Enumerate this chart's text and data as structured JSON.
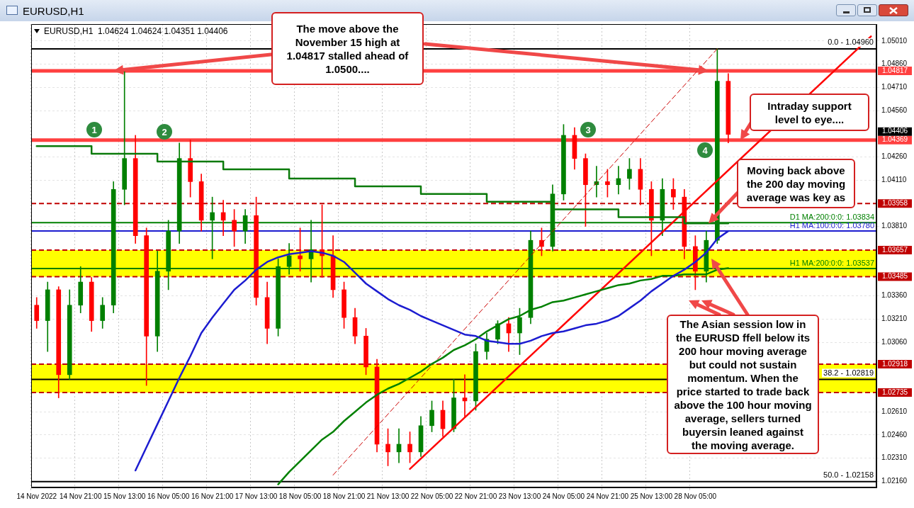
{
  "chart_data": {
    "type": "candlestick",
    "title": "EURUSD,H1",
    "subtitle": "EURUSD,H1  1.04624 1.04624 1.04351 1.04406",
    "categories": [
      "14 Nov 2022",
      null,
      null,
      null,
      "14 Nov 21:00",
      null,
      null,
      null,
      "15 Nov 13:00",
      null,
      null,
      null,
      "16 Nov 05:00",
      null,
      null,
      null,
      "16 Nov 21:00",
      null,
      null,
      null,
      "17 Nov 13:00",
      null,
      null,
      null,
      "18 Nov 05:00",
      null,
      null,
      null,
      "18 Nov 21:00",
      null,
      null,
      null,
      "21 Nov 13:00",
      null,
      null,
      null,
      "22 Nov 05:00",
      null,
      null,
      null,
      "22 Nov 21:00",
      null,
      null,
      null,
      "23 Nov 13:00",
      null,
      null,
      null,
      "24 Nov 05:00",
      null,
      null,
      null,
      "24 Nov 21:00",
      null,
      null,
      null,
      "25 Nov 13:00",
      null,
      null,
      null,
      "28 Nov 05:00",
      null,
      null,
      null,
      null,
      null,
      null,
      null,
      null,
      null,
      null,
      null,
      null,
      null,
      null,
      null,
      null
    ],
    "ohlc": [
      [
        1.033,
        1.0335,
        1.0315,
        1.032
      ],
      [
        1.032,
        1.0345,
        1.03,
        1.034
      ],
      [
        1.034,
        1.0342,
        1.027,
        1.0285
      ],
      [
        1.0285,
        1.034,
        1.0282,
        1.033
      ],
      [
        1.033,
        1.0355,
        1.0325,
        1.0345
      ],
      [
        1.0345,
        1.0348,
        1.0313,
        1.032
      ],
      [
        1.032,
        1.0335,
        1.0315,
        1.033
      ],
      [
        1.033,
        1.041,
        1.0325,
        1.0405
      ],
      [
        1.0405,
        1.04817,
        1.0395,
        1.0425
      ],
      [
        1.0425,
        1.044,
        1.037,
        1.0375
      ],
      [
        1.0375,
        1.038,
        1.0278,
        1.031
      ],
      [
        1.031,
        1.0365,
        1.03,
        1.0352
      ],
      [
        1.0352,
        1.0385,
        1.034,
        1.0378
      ],
      [
        1.0378,
        1.0435,
        1.037,
        1.0425
      ],
      [
        1.0425,
        1.0437,
        1.04,
        1.041
      ],
      [
        1.041,
        1.0415,
        1.0378,
        1.0385
      ],
      [
        1.0385,
        1.04,
        1.036,
        1.039
      ],
      [
        1.039,
        1.0398,
        1.0375,
        1.0385
      ],
      [
        1.0385,
        1.0392,
        1.0368,
        1.0378
      ],
      [
        1.0378,
        1.0392,
        1.037,
        1.0388
      ],
      [
        1.0388,
        1.04,
        1.033,
        1.0335
      ],
      [
        1.0335,
        1.0345,
        1.0305,
        1.0315
      ],
      [
        1.0315,
        1.036,
        1.031,
        1.0355
      ],
      [
        1.0355,
        1.037,
        1.035,
        1.0362
      ],
      [
        1.0362,
        1.038,
        1.0352,
        1.036
      ],
      [
        1.036,
        1.0385,
        1.0345,
        1.0366
      ],
      [
        1.0366,
        1.0395,
        1.0348,
        1.0362
      ],
      [
        1.0362,
        1.0375,
        1.0335,
        1.034
      ],
      [
        1.034,
        1.0345,
        1.0315,
        1.0322
      ],
      [
        1.0322,
        1.0328,
        1.0305,
        1.031
      ],
      [
        1.031,
        1.0315,
        1.0285,
        1.029
      ],
      [
        1.029,
        1.0295,
        1.0235,
        1.024
      ],
      [
        1.024,
        1.025,
        1.0226,
        1.0235
      ],
      [
        1.0235,
        1.025,
        1.0228,
        1.024
      ],
      [
        1.024,
        1.0248,
        1.0228,
        1.0235
      ],
      [
        1.0235,
        1.0258,
        1.0232,
        1.0252
      ],
      [
        1.0252,
        1.0268,
        1.0248,
        1.0262
      ],
      [
        1.0262,
        1.0268,
        1.0245,
        1.025
      ],
      [
        1.025,
        1.0282,
        1.0248,
        1.027
      ],
      [
        1.027,
        1.0285,
        1.0258,
        1.0268
      ],
      [
        1.0268,
        1.0305,
        1.0262,
        1.03
      ],
      [
        1.03,
        1.0312,
        1.0295,
        1.0308
      ],
      [
        1.0308,
        1.032,
        1.0305,
        1.0318
      ],
      [
        1.0318,
        1.0322,
        1.03,
        1.0312
      ],
      [
        1.0312,
        1.0328,
        1.0298,
        1.0322
      ],
      [
        1.0322,
        1.0378,
        1.0318,
        1.0372
      ],
      [
        1.0372,
        1.038,
        1.0362,
        1.0368
      ],
      [
        1.0368,
        1.0408,
        1.0365,
        1.0402
      ],
      [
        1.0402,
        1.0447,
        1.0398,
        1.044
      ],
      [
        1.044,
        1.0445,
        1.0418,
        1.0425
      ],
      [
        1.0425,
        1.0428,
        1.0381,
        1.0408
      ],
      [
        1.0408,
        1.042,
        1.04,
        1.041
      ],
      [
        1.041,
        1.0418,
        1.04,
        1.0408
      ],
      [
        1.0408,
        1.042,
        1.0402,
        1.0412
      ],
      [
        1.0412,
        1.0425,
        1.0405,
        1.0418
      ],
      [
        1.0418,
        1.0425,
        1.0395,
        1.0405
      ],
      [
        1.0405,
        1.041,
        1.0362,
        1.0385
      ],
      [
        1.0385,
        1.0412,
        1.0375,
        1.0405
      ],
      [
        1.0405,
        1.0412,
        1.0392,
        1.04
      ],
      [
        1.04,
        1.0405,
        1.036,
        1.0368
      ],
      [
        1.0368,
        1.0375,
        1.034,
        1.0352
      ],
      [
        1.0352,
        1.0378,
        1.0345,
        1.0372
      ],
      [
        1.0372,
        1.0496,
        1.037,
        1.0475
      ],
      [
        1.0475,
        1.048,
        1.04351,
        1.04406
      ],
      null,
      null,
      null,
      null,
      null,
      null,
      null,
      null,
      null,
      null,
      null,
      null,
      null
    ],
    "colors": [
      "#ff0000",
      "#008000",
      "#ff0000",
      "#008000",
      "#008000",
      "#ff0000",
      "#008000",
      "#008000",
      "#008000",
      "#ff0000",
      "#ff0000",
      "#008000",
      "#008000",
      "#008000",
      "#ff0000",
      "#ff0000",
      "#008000",
      "#ff0000",
      "#ff0000",
      "#008000",
      "#ff0000",
      "#ff0000",
      "#008000",
      "#008000",
      "#ff0000",
      "#008000",
      "#ff0000",
      "#ff0000",
      "#ff0000",
      "#ff0000",
      "#ff0000",
      "#ff0000",
      "#ff0000",
      "#008000",
      "#ff0000",
      "#008000",
      "#008000",
      "#ff0000",
      "#008000",
      "#ff0000",
      "#008000",
      "#008000",
      "#008000",
      "#ff0000",
      "#008000",
      "#008000",
      "#ff0000",
      "#008000",
      "#008000",
      "#ff0000",
      "#ff0000",
      "#008000",
      "#ff0000",
      "#008000",
      "#008000",
      "#ff0000",
      "#ff0000",
      "#008000",
      "#ff0000",
      "#ff0000",
      "#ff0000",
      "#008000",
      "#008000",
      "#ff0000",
      null,
      null,
      null,
      null,
      null,
      null,
      null,
      null,
      null,
      null,
      null,
      null,
      null
    ],
    "series": [
      {
        "type": "line",
        "color": "#1c1cd0",
        "values": [
          null,
          null,
          null,
          null,
          null,
          null,
          null,
          null,
          null,
          1.0223,
          1.0238,
          1.0253,
          1.0268,
          1.0283,
          1.0297,
          1.0312,
          1.0322,
          1.0331,
          1.034,
          1.0346,
          1.0353,
          1.0358,
          1.0361,
          1.0363,
          1.0364,
          1.0365,
          1.0364,
          1.0362,
          1.0358,
          1.0351,
          1.0344,
          1.0339,
          1.0334,
          1.033,
          1.0327,
          1.0323,
          1.032,
          1.0317,
          1.0314,
          1.0311,
          1.031,
          1.0307,
          1.0306,
          1.0305,
          1.0305,
          1.0307,
          1.031,
          1.0312,
          1.0313,
          1.0315,
          1.0317,
          1.0318,
          1.032,
          1.0323,
          1.0328,
          1.0333,
          1.0339,
          1.0344,
          1.0349,
          1.0353,
          1.0358,
          1.0364,
          1.0373,
          1.0378,
          null,
          null,
          null,
          null,
          null,
          null,
          null,
          null,
          null,
          null,
          null,
          null,
          null
        ]
      },
      {
        "type": "line",
        "color": "#008000",
        "values": [
          null,
          null,
          null,
          null,
          null,
          null,
          null,
          null,
          null,
          null,
          null,
          null,
          null,
          null,
          null,
          null,
          null,
          null,
          null,
          null,
          null,
          null,
          1.0214,
          1.0222,
          1.0229,
          1.0236,
          1.0243,
          1.0248,
          1.0255,
          1.0261,
          1.0267,
          1.0272,
          1.0276,
          1.0279,
          1.0283,
          1.0287,
          1.0292,
          1.0296,
          1.0301,
          1.0304,
          1.0308,
          1.0313,
          1.0317,
          1.0321,
          1.0323,
          1.0327,
          1.0329,
          1.0332,
          1.0333,
          1.0335,
          1.0337,
          1.0339,
          1.0341,
          1.0343,
          1.0344,
          1.0346,
          1.0347,
          1.0349,
          1.0349,
          1.035,
          1.035,
          1.035,
          1.0353,
          1.0354,
          null,
          null,
          null,
          null,
          null,
          null,
          null,
          null,
          null,
          null,
          null,
          null,
          null
        ]
      },
      {
        "type": "step",
        "color": "#0a7a0a",
        "values": [
          1.0433,
          1.0433,
          1.0433,
          1.0433,
          1.0433,
          1.0428,
          1.0428,
          1.0428,
          1.0428,
          1.0428,
          1.0428,
          1.0423,
          1.0423,
          1.0423,
          1.0423,
          1.0423,
          1.0423,
          1.0418,
          1.0418,
          1.0418,
          1.0418,
          1.0418,
          1.0418,
          1.0412,
          1.0412,
          1.0412,
          1.0412,
          1.0412,
          1.0412,
          1.0407,
          1.0407,
          1.0407,
          1.0407,
          1.0407,
          1.0407,
          1.0402,
          1.0402,
          1.0402,
          1.0402,
          1.0402,
          1.0402,
          1.0397,
          1.0397,
          1.0397,
          1.0397,
          1.0397,
          1.0397,
          1.0392,
          1.0392,
          1.0392,
          1.0392,
          1.0392,
          1.0392,
          1.0387,
          1.0387,
          1.0387,
          1.0387,
          1.0387,
          1.0387,
          1.0383,
          1.0383,
          1.0383,
          1.0383,
          1.0383,
          null,
          null,
          null,
          null,
          null,
          null,
          null,
          null,
          null,
          null,
          null,
          null,
          null
        ]
      },
      {
        "type": "line",
        "color": "#ff0000",
        "values": [
          null,
          null,
          null,
          null,
          null,
          null,
          null,
          null,
          null,
          null,
          null,
          null,
          null,
          null,
          null,
          null,
          null,
          null,
          null,
          null,
          null,
          null,
          null,
          null,
          null,
          null,
          null,
          null,
          null,
          null,
          null,
          null,
          null,
          null,
          1.0224,
          null,
          null,
          null,
          null,
          null,
          null,
          null,
          null,
          null,
          null,
          null,
          null,
          null,
          null,
          null,
          null,
          null,
          null,
          null,
          null,
          null,
          null,
          null,
          null,
          null,
          null,
          null,
          null,
          null,
          null,
          null,
          null,
          null,
          null,
          null,
          null,
          null,
          null,
          null,
          null,
          null,
          1.0504
        ]
      },
      {
        "type": "line",
        "color": "#cc0000",
        "line_style": "dashed",
        "values": [
          null,
          null,
          null,
          null,
          null,
          null,
          null,
          null,
          null,
          null,
          null,
          null,
          null,
          null,
          null,
          null,
          null,
          null,
          null,
          null,
          null,
          null,
          null,
          null,
          null,
          null,
          null,
          1.022,
          null,
          null,
          null,
          null,
          null,
          null,
          null,
          null,
          null,
          null,
          null,
          null,
          null,
          null,
          null,
          null,
          null,
          null,
          null,
          null,
          null,
          null,
          null,
          null,
          null,
          null,
          null,
          null,
          null,
          null,
          null,
          null,
          null,
          null,
          1.0496,
          null,
          null,
          null,
          null,
          null,
          null,
          null,
          null,
          null,
          null,
          null,
          null,
          null,
          null
        ]
      }
    ],
    "bands": [
      {
        "axis": "y",
        "from": 1.03485,
        "to": 1.03657,
        "color": "#ffff00"
      },
      {
        "axis": "y",
        "from": 1.02735,
        "to": 1.02918,
        "color": "#ffff00"
      }
    ],
    "ref_lines": [
      {
        "axis": "y",
        "value": 1.04817,
        "label": "1.04817",
        "color": "#ff4040",
        "line_style": "solid"
      },
      {
        "axis": "y",
        "value": 1.04369,
        "label": "1.04369",
        "color": "#ff4040",
        "line_style": "solid"
      },
      {
        "axis": "y",
        "value": 1.03958,
        "label": "1.03958",
        "color": "#c00000",
        "line_style": "dashed"
      },
      {
        "axis": "y",
        "value": 1.03657,
        "label": "1.03657",
        "color": "#c00000",
        "line_style": "dashed"
      },
      {
        "axis": "y",
        "value": 1.03485,
        "label": "1.03485",
        "color": "#c00000",
        "line_style": "dashed"
      },
      {
        "axis": "y",
        "value": 1.02918,
        "label": "1.02918",
        "color": "#c00000",
        "line_style": "dashed"
      },
      {
        "axis": "y",
        "value": 1.02735,
        "label": "1.02735",
        "color": "#c00000",
        "line_style": "dashed"
      },
      {
        "axis": "y",
        "value": 1.0496,
        "color": "#000000",
        "line_style": "solid"
      },
      {
        "axis": "y",
        "value": 1.02819,
        "color": "#000000",
        "line_style": "solid"
      },
      {
        "axis": "y",
        "value": 1.02158,
        "color": "#000000",
        "line_style": "solid"
      },
      {
        "axis": "y",
        "value": 1.03834,
        "label": "D1 MA:200:0:0: 1.03834",
        "color": "#008000",
        "line_style": "solid"
      },
      {
        "axis": "y",
        "value": 1.0378,
        "label": "H1 MA:100:0:0: 1.03780",
        "color": "#1c1cd0",
        "line_style": "solid"
      },
      {
        "axis": "y",
        "value": 1.03537,
        "label": "H1 MA:200:0:0: 1.03537",
        "color": "#008000",
        "line_style": "solid"
      }
    ],
    "annotations": [
      {
        "text": "The move above the November 15 high at 1.04817 stalled ahead of 1.0500....",
        "y": 1.04817
      },
      {
        "text": "Intraday support level to eye....",
        "y": 1.04369
      },
      {
        "text": "Moving back above the 200 day moving average was key as",
        "y": 1.0383
      },
      "The Asian session low in the EURUSD ffell below its 200 hour moving average but could not sustain momentum.  When the price started to trade back above the 100 hour moving average, sellers turned buyersin leaned against the moving average.",
      "1",
      "2",
      "3",
      "4",
      "1.04406",
      "0.0 - 1.04960",
      "38.2 - 1.02819",
      "50.0 - 1.02158"
    ],
    "ylim": [
      1.0212,
      1.0512
    ],
    "yticks": [
      {
        "value": 1.0216,
        "label": "1.02160"
      },
      {
        "value": 1.0231,
        "label": "1.02310"
      },
      {
        "value": 1.0246,
        "label": "1.02460"
      },
      {
        "value": 1.0261,
        "label": "1.02610"
      },
      {
        "value": 1.0306,
        "label": "1.03060"
      },
      {
        "value": 1.0321,
        "label": "1.03210"
      },
      {
        "value": 1.0336,
        "label": "1.03360"
      },
      {
        "value": 1.0381,
        "label": "1.03810"
      },
      {
        "value": 1.0411,
        "label": "1.04110"
      },
      {
        "value": 1.0426,
        "label": "1.04260"
      },
      {
        "value": 1.0456,
        "label": "1.04560"
      },
      {
        "value": 1.0471,
        "label": "1.04710"
      },
      {
        "value": 1.0486,
        "label": "1.04860"
      },
      {
        "value": 1.0501,
        "label": "1.05010"
      }
    ],
    "grid": true,
    "legend": false
  }
}
